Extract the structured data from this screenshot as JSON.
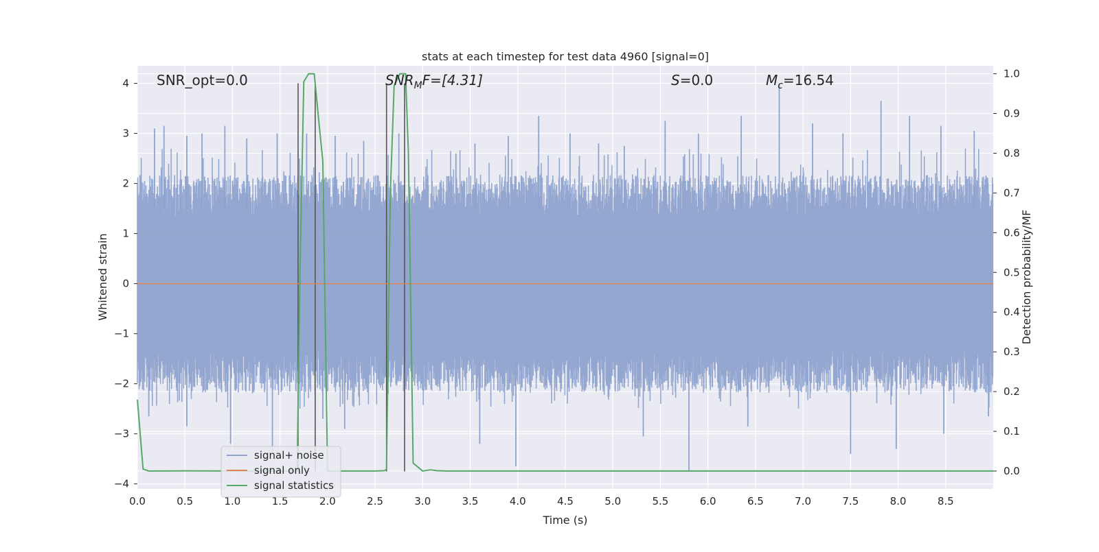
{
  "chart_data": {
    "type": "line",
    "title": "stats at each timestep for test data 4960 [signal=0]",
    "xlabel": "Time (s)",
    "ylabel_left": "Whitened strain",
    "ylabel_right": "Detection probability/MF",
    "xlim": [
      0.0,
      9.0
    ],
    "ylim_left": [
      -4.1,
      4.35
    ],
    "ylim_right": [
      -0.045,
      1.02
    ],
    "x_ticks": [
      "0.0",
      "0.5",
      "1.0",
      "1.5",
      "2.0",
      "2.5",
      "3.0",
      "3.5",
      "4.0",
      "4.5",
      "5.0",
      "5.5",
      "6.0",
      "6.5",
      "7.0",
      "7.5",
      "8.0",
      "8.5"
    ],
    "y_ticks_left": [
      "4",
      "3",
      "2",
      "1",
      "0",
      "−1",
      "−2",
      "−3",
      "−4"
    ],
    "y_ticks_right": [
      "1.0",
      "0.9",
      "0.8",
      "0.7",
      "0.6",
      "0.5",
      "0.4",
      "0.3",
      "0.2",
      "0.1",
      "0.0"
    ],
    "grid": true,
    "legend_position": "lower-left",
    "annotations": {
      "snr_opt": "SNR_opt=0.0",
      "snr_mf_base": "SNR",
      "snr_mf_sub": "M",
      "snr_mf_rest": "F=[4.31]",
      "s_base": "S",
      "s_rest": "=0.0",
      "mc_base": "M",
      "mc_sub": "c",
      "mc_rest": "=16.54"
    },
    "series": [
      {
        "name": "signal+ noise",
        "color": "#8fa3cd",
        "kind": "noise",
        "spread": [
          -1.5,
          1.5
        ],
        "peaks_high": [
          [
            0.18,
            3.1
          ],
          [
            0.28,
            3.15
          ],
          [
            0.52,
            2.95
          ],
          [
            0.68,
            3.0
          ],
          [
            0.92,
            3.15
          ],
          [
            1.15,
            2.9
          ],
          [
            1.47,
            3.0
          ],
          [
            1.78,
            3.0
          ],
          [
            2.08,
            2.95
          ],
          [
            2.38,
            2.85
          ],
          [
            2.75,
            3.0
          ],
          [
            3.35,
            2.6
          ],
          [
            3.55,
            2.8
          ],
          [
            3.9,
            2.95
          ],
          [
            4.22,
            3.35
          ],
          [
            4.55,
            3.0
          ],
          [
            4.85,
            2.8
          ],
          [
            5.12,
            2.75
          ],
          [
            5.55,
            3.25
          ],
          [
            5.9,
            3.0
          ],
          [
            6.35,
            3.35
          ],
          [
            6.75,
            4.0
          ],
          [
            7.1,
            3.2
          ],
          [
            7.42,
            3.0
          ],
          [
            7.82,
            3.65
          ],
          [
            8.12,
            3.35
          ],
          [
            8.45,
            3.15
          ],
          [
            8.8,
            3.05
          ]
        ],
        "peaks_low": [
          [
            0.12,
            -2.65
          ],
          [
            0.52,
            -2.85
          ],
          [
            0.98,
            -3.2
          ],
          [
            1.42,
            -3.35
          ],
          [
            1.95,
            -2.7
          ],
          [
            2.18,
            -2.9
          ],
          [
            3.6,
            -3.2
          ],
          [
            3.98,
            -3.65
          ],
          [
            5.32,
            -3.05
          ],
          [
            5.8,
            -3.75
          ],
          [
            6.42,
            -2.85
          ],
          [
            7.5,
            -3.4
          ],
          [
            7.98,
            -3.3
          ],
          [
            8.48,
            -3.0
          ],
          [
            8.95,
            -2.65
          ]
        ]
      },
      {
        "name": "signal only",
        "color": "#dd8452",
        "x": [
          0.0,
          9.0
        ],
        "y": [
          0.0,
          0.0
        ]
      },
      {
        "name": "signal statistics",
        "color": "#55a868",
        "axis": "right",
        "x": [
          0.0,
          0.06,
          0.12,
          0.5,
          1.0,
          1.5,
          1.68,
          1.71,
          1.75,
          1.8,
          1.86,
          1.9,
          1.95,
          2.0,
          2.05,
          2.5,
          2.6,
          2.62,
          2.66,
          2.7,
          2.76,
          2.82,
          2.85,
          2.9,
          3.0,
          3.08,
          3.15,
          3.25,
          4.0,
          5.0,
          6.0,
          7.0,
          8.0,
          9.0
        ],
        "y": [
          0.18,
          0.005,
          0.0,
          0.0005,
          0.0,
          0.0,
          0.0,
          0.5,
          0.98,
          1.0,
          1.0,
          0.9,
          0.78,
          0.0,
          0.0,
          0.0,
          0.001,
          0.005,
          0.7,
          0.97,
          1.0,
          1.0,
          0.8,
          0.02,
          0.0,
          0.003,
          0.001,
          0.0,
          0.0,
          0.0,
          0.0,
          0.0,
          0.0,
          0.0
        ]
      }
    ],
    "vertical_markers": [
      {
        "x": 1.69,
        "y_top": 4.0,
        "y_bottom": -3.75,
        "color": "#555555"
      },
      {
        "x": 1.87,
        "y_top": 4.0,
        "y_bottom": -3.75,
        "color": "#555555"
      },
      {
        "x": 2.62,
        "y_top": 4.0,
        "y_bottom": -3.75,
        "color": "#555555"
      },
      {
        "x": 2.81,
        "y_top": 4.0,
        "y_bottom": -3.75,
        "color": "#555555"
      }
    ]
  }
}
